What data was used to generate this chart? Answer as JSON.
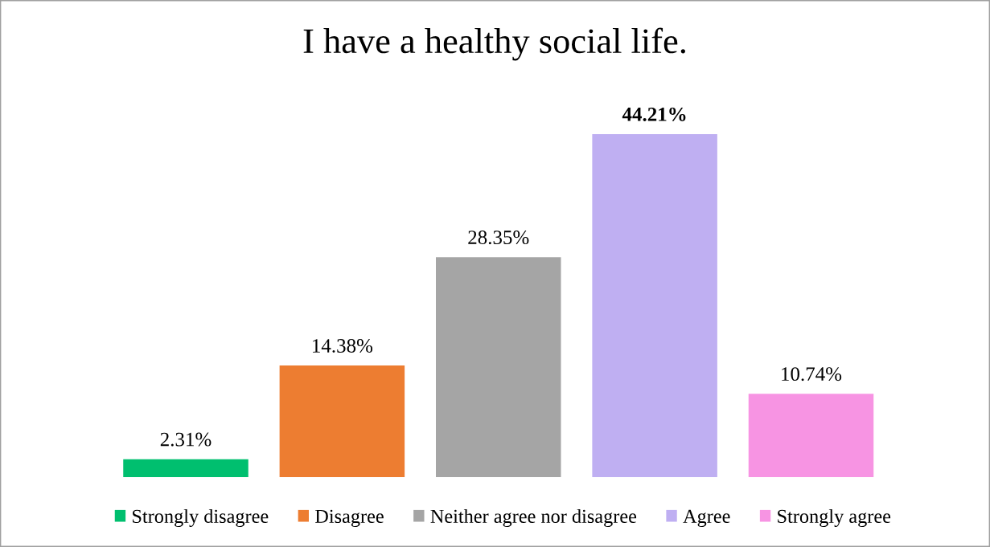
{
  "chart_data": {
    "type": "bar",
    "title": "I have a healthy social life.",
    "categories": [
      null,
      null,
      null,
      null,
      null
    ],
    "series": [
      {
        "name": "Strongly disagree",
        "color": "#00bf6f",
        "values": [
          2.31,
          null,
          null,
          null,
          null
        ],
        "value_labels": [
          "2.31%",
          null,
          null,
          null,
          null
        ]
      },
      {
        "name": "Disagree",
        "color": "#ed7d31",
        "values": [
          null,
          14.38,
          null,
          null,
          null
        ],
        "value_labels": [
          null,
          "14.38%",
          null,
          null,
          null
        ]
      },
      {
        "name": "Neither agree nor disagree",
        "color": "#a5a5a5",
        "values": [
          null,
          null,
          28.35,
          null,
          null
        ],
        "value_labels": [
          null,
          null,
          "28.35%",
          null,
          null
        ]
      },
      {
        "name": "Agree",
        "color": "#bfaff2",
        "values": [
          null,
          null,
          null,
          44.21,
          null
        ],
        "value_labels": [
          null,
          null,
          null,
          "44.21%",
          null
        ]
      },
      {
        "name": "Strongly agree",
        "color": "#f794e3",
        "values": [
          null,
          null,
          null,
          null,
          10.74
        ],
        "value_labels": [
          null,
          null,
          null,
          null,
          "10.74%"
        ]
      }
    ],
    "stacked": true,
    "legend": "bottom",
    "tick_labels": false
  }
}
